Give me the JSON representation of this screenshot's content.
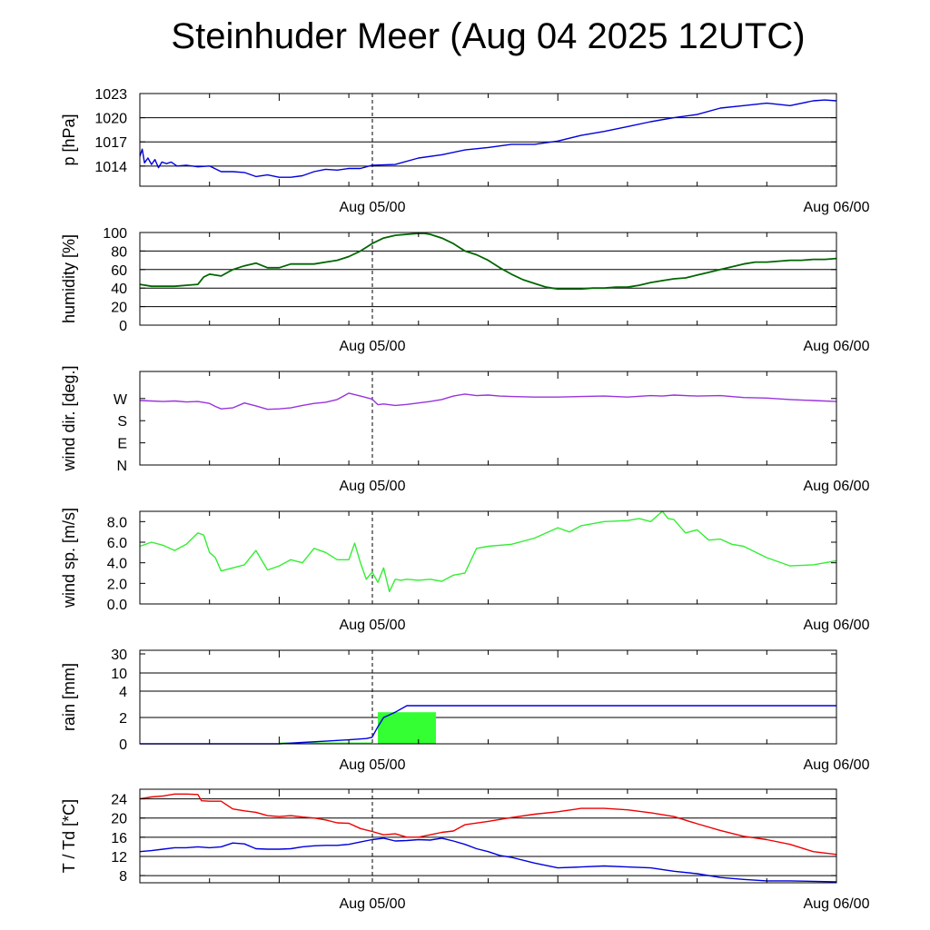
{
  "title": "Steinhuder Meer (Aug 04 2025 12UTC)",
  "x_tick_labels": [
    "Aug 05/00",
    "Aug 06/00"
  ],
  "colors": {
    "pressure": "#0000dd",
    "humidity": "#006600",
    "wind_dir": "#9933dd",
    "wind_speed": "#33ee33",
    "rain_accum": "#0000dd",
    "rain_bar": "#33ff33",
    "temperature": "#ee0000",
    "dewpoint": "#0000dd"
  },
  "chart_data": [
    {
      "type": "line",
      "name": "pressure",
      "ylabel": "p [hPa]",
      "ylim": [
        1011.5,
        1023
      ],
      "yticks": [
        1014,
        1017,
        1020,
        1023
      ],
      "ytick_labels": [
        "1014",
        "1017",
        "1020",
        "1023"
      ],
      "grid": [
        1014,
        1017,
        1020
      ],
      "x_unit": "hours after Aug 04 12UTC",
      "xlim": [
        12,
        72
      ],
      "series": [
        {
          "color_key": "pressure",
          "x": [
            12,
            12.2,
            12.4,
            12.7,
            13,
            13.3,
            13.6,
            13.9,
            14.3,
            14.7,
            15.2,
            16,
            17,
            18,
            19,
            20,
            21,
            22,
            23,
            24,
            25,
            26,
            27,
            28,
            29,
            30,
            31,
            32,
            34,
            36,
            38,
            40,
            42,
            44,
            46,
            48,
            50,
            52,
            54,
            56,
            58,
            60,
            62,
            64,
            66,
            68,
            70,
            71,
            72
          ],
          "y": [
            1015.2,
            1016.1,
            1014.4,
            1015.0,
            1014.2,
            1014.8,
            1013.8,
            1014.5,
            1014.3,
            1014.5,
            1014.0,
            1014.1,
            1013.9,
            1014.0,
            1013.3,
            1013.3,
            1013.2,
            1012.7,
            1012.9,
            1012.6,
            1012.6,
            1012.8,
            1013.3,
            1013.6,
            1013.5,
            1013.7,
            1013.7,
            1014.1,
            1014.2,
            1015.0,
            1015.4,
            1016.0,
            1016.3,
            1016.7,
            1016.7,
            1017.1,
            1017.8,
            1018.3,
            1018.9,
            1019.5,
            1020.0,
            1020.4,
            1021.2,
            1021.5,
            1021.8,
            1021.5,
            1022.1,
            1022.2,
            1022.1
          ]
        }
      ]
    },
    {
      "type": "line",
      "name": "humidity",
      "ylabel": "humidity [%]",
      "ylim": [
        0,
        100
      ],
      "yticks": [
        0,
        20,
        40,
        60,
        80,
        100
      ],
      "ytick_labels": [
        "0",
        "20",
        "40",
        "60",
        "80",
        "100"
      ],
      "grid": [
        20,
        40,
        60,
        80
      ],
      "x_unit": "hours after Aug 04 12UTC",
      "xlim": [
        12,
        72
      ],
      "series": [
        {
          "color_key": "humidity",
          "x": [
            12,
            13,
            14,
            15,
            16,
            17,
            17.5,
            18,
            18.5,
            19,
            20,
            21,
            22,
            23,
            24,
            25,
            26,
            27,
            28,
            29,
            30,
            31,
            32,
            33,
            34,
            35,
            36,
            36.5,
            37,
            38,
            39,
            40,
            41,
            42,
            43,
            44,
            45,
            46,
            47,
            48,
            49,
            50,
            51,
            52,
            53,
            54,
            55,
            56,
            57,
            58,
            59,
            60,
            61,
            62,
            63,
            64,
            65,
            66,
            67,
            68,
            69,
            70,
            71,
            72
          ],
          "y": [
            44,
            42,
            42,
            42,
            43,
            44,
            52,
            55,
            54,
            53,
            60,
            64,
            67,
            62,
            62,
            66,
            66,
            66,
            68,
            70,
            74,
            80,
            88,
            94,
            97,
            98,
            99,
            99,
            98,
            94,
            88,
            80,
            76,
            70,
            62,
            55,
            49,
            45,
            41,
            39,
            39,
            39,
            40,
            40,
            41,
            41,
            43,
            46,
            48,
            50,
            51,
            54,
            57,
            60,
            63,
            66,
            68,
            68,
            69,
            70,
            70,
            71,
            71,
            72
          ]
        }
      ]
    },
    {
      "type": "line",
      "name": "wind_direction",
      "ylabel": "wind dir. [deg.]",
      "ylim": [
        0,
        380
      ],
      "yticks": [
        0,
        90,
        180,
        270
      ],
      "ytick_labels": [
        "N",
        "E",
        "S",
        "W"
      ],
      "grid": [],
      "x_unit": "hours after Aug 04 12UTC",
      "xlim": [
        12,
        72
      ],
      "series": [
        {
          "color_key": "wind_dir",
          "x": [
            12,
            13,
            14,
            15,
            16,
            17,
            18,
            18.5,
            19,
            20,
            21,
            22,
            23,
            24,
            25,
            26,
            27,
            28,
            29,
            30,
            31,
            32,
            32.5,
            33,
            34,
            35,
            36,
            37,
            38,
            39,
            40,
            41,
            42,
            43,
            44,
            46,
            48,
            50,
            52,
            54,
            56,
            57,
            58,
            60,
            62,
            64,
            66,
            68,
            70,
            72
          ],
          "y": [
            262,
            260,
            258,
            260,
            256,
            258,
            250,
            238,
            228,
            232,
            252,
            240,
            226,
            228,
            232,
            242,
            250,
            255,
            266,
            292,
            280,
            268,
            245,
            248,
            242,
            246,
            252,
            258,
            266,
            280,
            288,
            282,
            284,
            280,
            278,
            276,
            276,
            278,
            280,
            276,
            282,
            280,
            284,
            280,
            282,
            274,
            272,
            266,
            262,
            258
          ]
        }
      ]
    },
    {
      "type": "line",
      "name": "wind_speed",
      "ylabel": "wind sp. [m/s]",
      "ylim": [
        0,
        9
      ],
      "yticks": [
        0,
        2,
        4,
        6,
        8
      ],
      "ytick_labels": [
        "0.0",
        "2.0",
        "4.0",
        "6.0",
        "8.0"
      ],
      "grid": [],
      "x_unit": "hours after Aug 04 12UTC",
      "xlim": [
        12,
        72
      ],
      "series": [
        {
          "color_key": "wind_speed",
          "x": [
            12,
            13,
            14,
            15,
            16,
            17,
            17.5,
            18,
            18.5,
            19,
            20,
            21,
            22,
            23,
            24,
            25,
            26,
            27,
            28,
            29,
            30,
            30.5,
            31,
            31.5,
            32,
            32.5,
            33,
            33.5,
            34,
            34.5,
            35,
            36,
            37,
            38,
            39,
            40,
            41,
            42,
            44,
            46,
            48,
            49,
            50,
            52,
            54,
            55,
            56,
            57,
            57.5,
            58,
            59,
            60,
            61,
            62,
            63,
            64,
            66,
            68,
            70,
            72
          ],
          "y": [
            5.6,
            6.0,
            5.7,
            5.2,
            5.8,
            6.9,
            6.7,
            5.0,
            4.5,
            3.2,
            3.5,
            3.8,
            5.2,
            3.3,
            3.7,
            4.3,
            4.0,
            5.4,
            5.0,
            4.3,
            4.3,
            5.9,
            4.0,
            2.4,
            3.1,
            2.1,
            3.5,
            1.2,
            2.4,
            2.3,
            2.4,
            2.3,
            2.4,
            2.2,
            2.8,
            3.0,
            5.4,
            5.6,
            5.8,
            6.4,
            7.4,
            7.0,
            7.6,
            8.0,
            8.1,
            8.3,
            8.0,
            9.0,
            8.3,
            8.2,
            6.9,
            7.2,
            6.2,
            6.3,
            5.8,
            5.6,
            4.5,
            3.7,
            3.8,
            4.2
          ]
        }
      ]
    },
    {
      "type": "line",
      "name": "rain",
      "ylabel": "rain [mm]",
      "ylim": [
        0,
        30
      ],
      "yticks": [
        0,
        2,
        4,
        10,
        30
      ],
      "ytick_labels": [
        "0",
        "2",
        "4",
        "10",
        "30"
      ],
      "grid": [
        2,
        4,
        10
      ],
      "scale": "nonlinear",
      "x_unit": "hours after Aug 04 12UTC",
      "xlim": [
        12,
        72
      ],
      "series": [
        {
          "color_key": "rain_accum",
          "x": [
            12,
            24,
            26,
            28,
            30,
            31.5,
            32,
            32.5,
            33,
            33.5,
            34,
            35,
            36,
            40,
            50,
            60,
            72
          ],
          "y": [
            0,
            0,
            0.1,
            0.2,
            0.3,
            0.4,
            0.5,
            1.3,
            2.0,
            2.2,
            2.4,
            2.9,
            2.9,
            2.9,
            2.9,
            2.9,
            2.9
          ]
        }
      ],
      "bars": [
        {
          "color_key": "rain_bar",
          "x_start": 24,
          "x_end": 32,
          "value": 0.05
        },
        {
          "color_key": "rain_bar",
          "x_start": 32.5,
          "x_end": 37.5,
          "value": 2.4
        }
      ]
    },
    {
      "type": "line",
      "name": "temperature_dewpoint",
      "ylabel": "T / Td [*C]",
      "ylim": [
        6.5,
        26
      ],
      "yticks": [
        8,
        12,
        16,
        20,
        24
      ],
      "ytick_labels": [
        "8",
        "12",
        "16",
        "20",
        "24"
      ],
      "grid": [
        8,
        12,
        16,
        20,
        24
      ],
      "x_unit": "hours after Aug 04 12UTC",
      "xlim": [
        12,
        72
      ],
      "series": [
        {
          "color_key": "temperature",
          "x": [
            12,
            13,
            14,
            15,
            16,
            17,
            17.3,
            18,
            19,
            20,
            21,
            22,
            23,
            24,
            25,
            26,
            27,
            28,
            29,
            30,
            31,
            32,
            33,
            34,
            35,
            36,
            37,
            38,
            39,
            40,
            42,
            44,
            46,
            48,
            50,
            52,
            54,
            56,
            58,
            60,
            62,
            64,
            66,
            68,
            70,
            72
          ],
          "y": [
            24.0,
            24.4,
            24.6,
            25.0,
            25.0,
            24.9,
            23.6,
            23.5,
            23.5,
            21.9,
            21.5,
            21.2,
            20.5,
            20.3,
            20.5,
            20.2,
            20.0,
            19.6,
            19.0,
            18.9,
            17.8,
            17.2,
            16.5,
            16.7,
            16.0,
            16.0,
            16.5,
            17.0,
            17.3,
            18.6,
            19.3,
            20.1,
            20.8,
            21.3,
            22.0,
            22.0,
            21.7,
            21.1,
            20.3,
            18.8,
            17.4,
            16.2,
            15.5,
            14.5,
            13.0,
            12.4
          ]
        },
        {
          "color_key": "dewpoint",
          "x": [
            12,
            13,
            14,
            15,
            16,
            17,
            18,
            19,
            20,
            21,
            22,
            23,
            24,
            25,
            26,
            27,
            28,
            29,
            30,
            31,
            32,
            33,
            34,
            35,
            36,
            37,
            38,
            39,
            40,
            41,
            42,
            43,
            44,
            46,
            48,
            50,
            52,
            54,
            56,
            58,
            60,
            62,
            64,
            66,
            68,
            70,
            72
          ],
          "y": [
            13.0,
            13.2,
            13.5,
            13.8,
            13.8,
            14.0,
            13.8,
            14.0,
            14.8,
            14.6,
            13.6,
            13.5,
            13.5,
            13.6,
            14.0,
            14.2,
            14.3,
            14.3,
            14.5,
            15.0,
            15.5,
            15.8,
            15.2,
            15.3,
            15.5,
            15.4,
            15.8,
            15.2,
            14.5,
            13.6,
            13.0,
            12.2,
            11.8,
            10.6,
            9.6,
            9.8,
            10.0,
            9.8,
            9.6,
            8.9,
            8.4,
            7.6,
            7.2,
            6.9,
            6.9,
            6.8,
            6.7
          ]
        }
      ]
    }
  ]
}
